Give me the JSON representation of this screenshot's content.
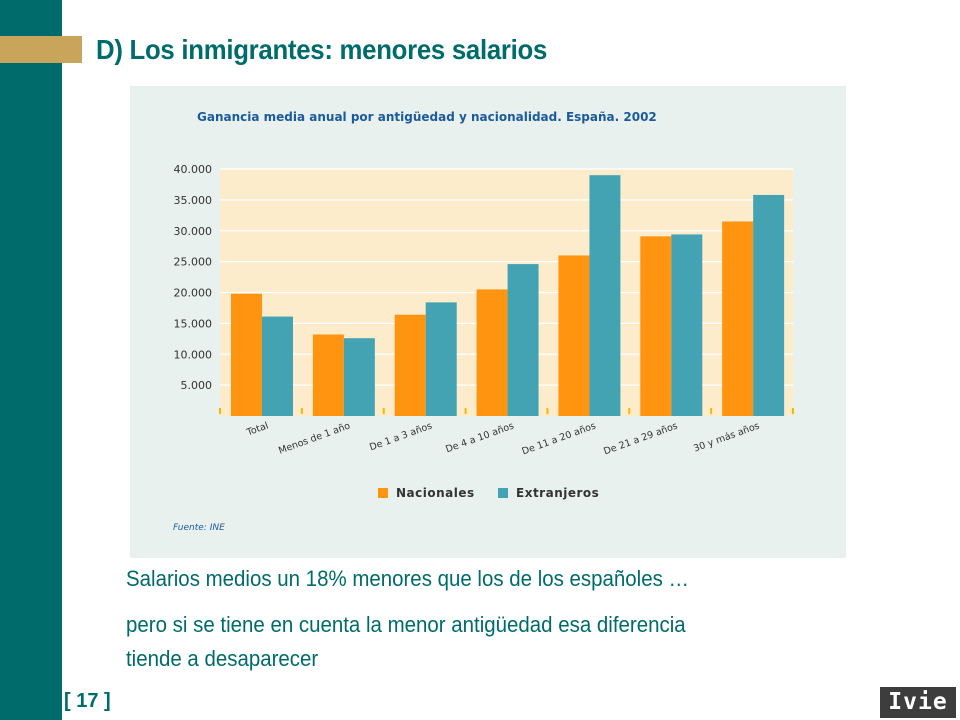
{
  "slide": {
    "title": "D) Los inmigrantes: menores salarios",
    "text_line1": "Salarios medios un 18% menores que los de los españoles …",
    "text_line2": "pero si se tiene en cuenta la menor antigüedad esa diferencia",
    "text_line3": "tiende a desaparecer",
    "page_number": "[ 17 ]",
    "logo_text": "Ivie"
  },
  "colors": {
    "accent": "#006b6b",
    "gold": "#c8a55a",
    "nacionales": "#ff9411",
    "extranjeros": "#43a3b2",
    "plot_bg": "#fdeccc",
    "panel_bg": "#e8f1ee",
    "title_blue": "#1c5a9e"
  },
  "chart_data": {
    "type": "bar",
    "title": "Ganancia media anual por antigüedad y nacionalidad. España. 2002",
    "source": "Fuente: INE",
    "categories": [
      "Total",
      "Menos de 1 año",
      "De 1 a 3 años",
      "De 4 a 10 años",
      "De 11 a 20 años",
      "De 21 a 29 años",
      "30 y más años"
    ],
    "series": [
      {
        "name": "Nacionales",
        "values": [
          19800,
          13200,
          16400,
          20500,
          26000,
          29100,
          31500
        ]
      },
      {
        "name": "Extranjeros",
        "values": [
          16100,
          12600,
          18400,
          24600,
          39000,
          29400,
          35800
        ]
      }
    ],
    "yticks": [
      "40.000",
      "35.000",
      "30.000",
      "25.000",
      "20.000",
      "15.000",
      "10.000",
      "5.000"
    ],
    "ylim": [
      0,
      40000
    ],
    "grid": true,
    "legend_position": "bottom"
  }
}
